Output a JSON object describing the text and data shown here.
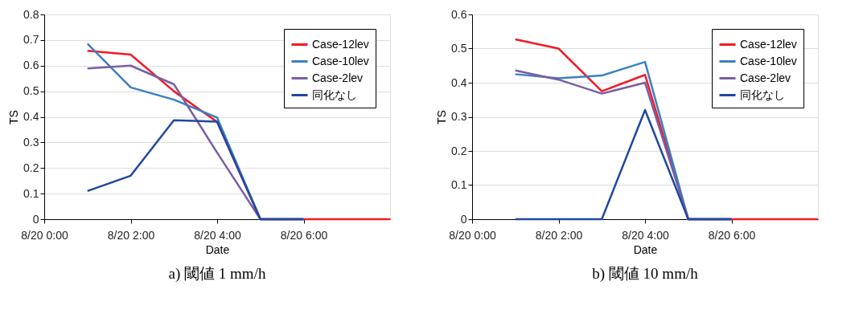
{
  "chart_data": [
    {
      "type": "line",
      "title": "a) 閾値 1 mm/h",
      "xlabel": "Date",
      "ylabel": "TS",
      "categories": [
        "8/20 0:00",
        null,
        "8/20 2:00",
        null,
        "8/20 4:00",
        null,
        "8/20 6:00",
        null,
        null
      ],
      "ylim": [
        0,
        0.8
      ],
      "yticks": [
        0,
        0.1,
        0.2,
        0.3,
        0.4,
        0.5,
        0.6,
        0.7,
        0.8
      ],
      "grid": "y",
      "legend": "top right",
      "marker": "none",
      "line_style": "solid",
      "series": [
        {
          "name": "Case-12lev",
          "color": "#ee1c25",
          "values": [
            null,
            0.658,
            0.643,
            0.5,
            0.38,
            0,
            0,
            0,
            0
          ]
        },
        {
          "name": "Case-10lev",
          "color": "#3a7fc1",
          "values": [
            null,
            0.686,
            0.515,
            0.467,
            0.397,
            0,
            0,
            null,
            null
          ]
        },
        {
          "name": "Case-2lev",
          "color": "#7a5ea5",
          "values": [
            null,
            0.589,
            0.6,
            0.527,
            0.26,
            0,
            0,
            null,
            null
          ]
        },
        {
          "name": "同化なし",
          "color": "#1f48a0",
          "values": [
            null,
            0.11,
            0.17,
            0.387,
            0.381,
            0,
            0,
            null,
            null
          ]
        }
      ]
    },
    {
      "type": "line",
      "title": "b) 閾値 10 mm/h",
      "xlabel": "Date",
      "ylabel": "TS",
      "categories": [
        "8/20 0:00",
        null,
        "8/20 2:00",
        null,
        "8/20 4:00",
        null,
        "8/20 6:00",
        null,
        null
      ],
      "ylim": [
        0,
        0.6
      ],
      "yticks": [
        0,
        0.1,
        0.2,
        0.3,
        0.4,
        0.5,
        0.6
      ],
      "grid": "y",
      "legend": "top right",
      "marker": "none",
      "line_style": "solid",
      "series": [
        {
          "name": "Case-12lev",
          "color": "#ee1c25",
          "values": [
            null,
            0.527,
            0.5,
            0.375,
            0.423,
            0,
            0,
            0,
            0
          ]
        },
        {
          "name": "Case-10lev",
          "color": "#3a7fc1",
          "values": [
            null,
            0.425,
            0.413,
            0.421,
            0.461,
            0,
            0,
            null,
            null
          ]
        },
        {
          "name": "Case-2lev",
          "color": "#7a5ea5",
          "values": [
            null,
            0.436,
            0.409,
            0.368,
            0.4,
            0,
            0,
            null,
            null
          ]
        },
        {
          "name": "同化なし",
          "color": "#1f48a0",
          "values": [
            null,
            0,
            0,
            0,
            0.32,
            0,
            0,
            null,
            null
          ]
        }
      ]
    }
  ]
}
